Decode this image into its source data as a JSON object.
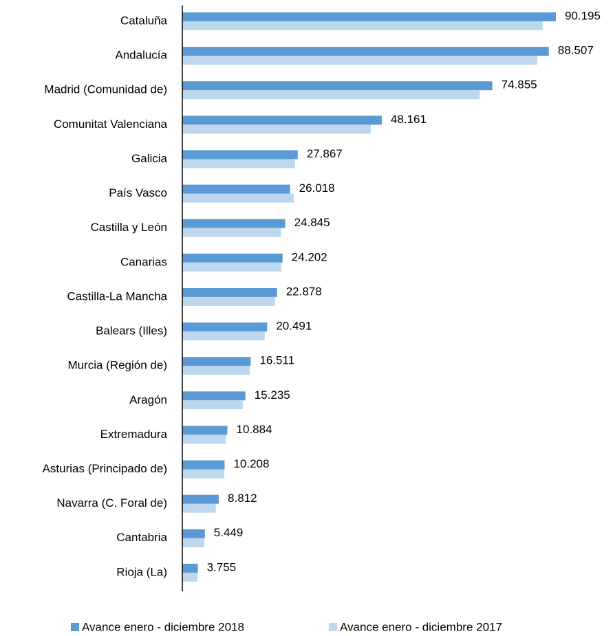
{
  "chart_data": {
    "type": "bar",
    "orientation": "horizontal",
    "categories": [
      "Cataluña",
      "Andalucía",
      "Madrid (Comunidad de)",
      "Comunitat Valenciana",
      "Galicia",
      "País Vasco",
      "Castilla y León",
      "Canarias",
      "Castilla-La Mancha",
      "Balears (Illes)",
      "Murcia (Región de)",
      "Aragón",
      "Extremadura",
      "Asturias (Principado de)",
      "Navarra (C. Foral de)",
      "Cantabria",
      "Rioja (La)"
    ],
    "series": [
      {
        "name": "Avance enero - diciembre 2018",
        "color": "#5b9bd5",
        "values": [
          90195,
          88507,
          74855,
          48161,
          27867,
          26018,
          24845,
          24202,
          22878,
          20491,
          16511,
          15235,
          10884,
          10208,
          8812,
          5449,
          3755
        ],
        "value_labels": [
          "90.195",
          "88.507",
          "74.855",
          "48.161",
          "27.867",
          "26.018",
          "24.845",
          "24.202",
          "22.878",
          "20.491",
          "16.511",
          "15.235",
          "10.884",
          "10.208",
          "8.812",
          "5.449",
          "3.755"
        ]
      },
      {
        "name": "Avance enero - diciembre 2017",
        "color": "#bdd7ee",
        "values": [
          87000,
          85700,
          71800,
          45500,
          27200,
          26900,
          23800,
          23900,
          22400,
          19900,
          16300,
          14600,
          10500,
          10100,
          8100,
          5300,
          3650
        ]
      }
    ],
    "xlim": [
      0,
      100000
    ],
    "legend": "bottom"
  }
}
